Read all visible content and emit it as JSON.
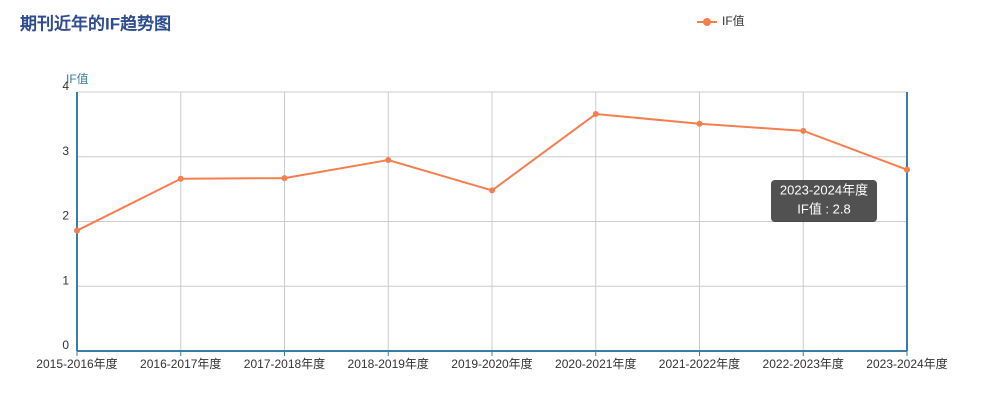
{
  "chart_data": {
    "type": "line",
    "title": "期刊近年的IF趋势图",
    "y_label": "IF值",
    "categories": [
      "2015-2016年度",
      "2016-2017年度",
      "2017-2018年度",
      "2018-2019年度",
      "2019-2020年度",
      "2020-2021年度",
      "2021-2022年度",
      "2022-2023年度",
      "2023-2024年度"
    ],
    "series": [
      {
        "name": "IF值",
        "color": "#f47f4e",
        "values": [
          1.86,
          2.66,
          2.67,
          2.95,
          2.48,
          3.66,
          3.51,
          3.4,
          2.8
        ]
      }
    ],
    "ylim": [
      0,
      4
    ],
    "yticks": [
      0,
      1,
      2,
      3,
      4
    ],
    "grid": true,
    "legend": "top",
    "tooltip": {
      "title": "2023-2024年度",
      "text": "IF值 : 2.8"
    }
  }
}
